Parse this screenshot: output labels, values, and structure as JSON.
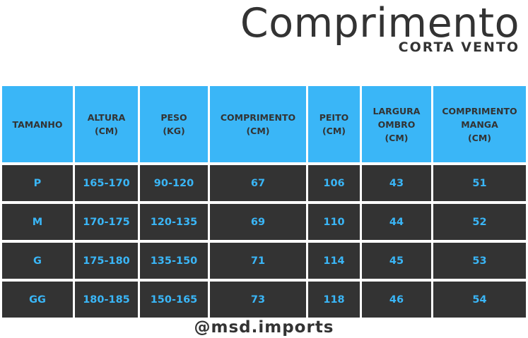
{
  "header": {
    "title": "Comprimento",
    "subtitle": "CORTA VENTO"
  },
  "table": {
    "columns": [
      "TAMANHO",
      "ALTURA\n(CM)",
      "PESO\n(KG)",
      "COMPRIMENTO\n(CM)",
      "PEITO\n(CM)",
      "LARGURA\nOMBRO\n(CM)",
      "COMPRIMENTO\nMANGA\n(CM)"
    ],
    "rows": [
      [
        "P",
        "165-170",
        "90-120",
        "67",
        "106",
        "43",
        "51"
      ],
      [
        "M",
        "170-175",
        "120-135",
        "69",
        "110",
        "44",
        "52"
      ],
      [
        "G",
        "175-180",
        "135-150",
        "71",
        "114",
        "45",
        "53"
      ],
      [
        "GG",
        "180-185",
        "150-165",
        "73",
        "118",
        "46",
        "54"
      ]
    ]
  },
  "footer": {
    "handle": "@msd.imports"
  },
  "colors": {
    "accent": "#3ab6f7",
    "dark": "#333333",
    "background": "#ffffff"
  }
}
